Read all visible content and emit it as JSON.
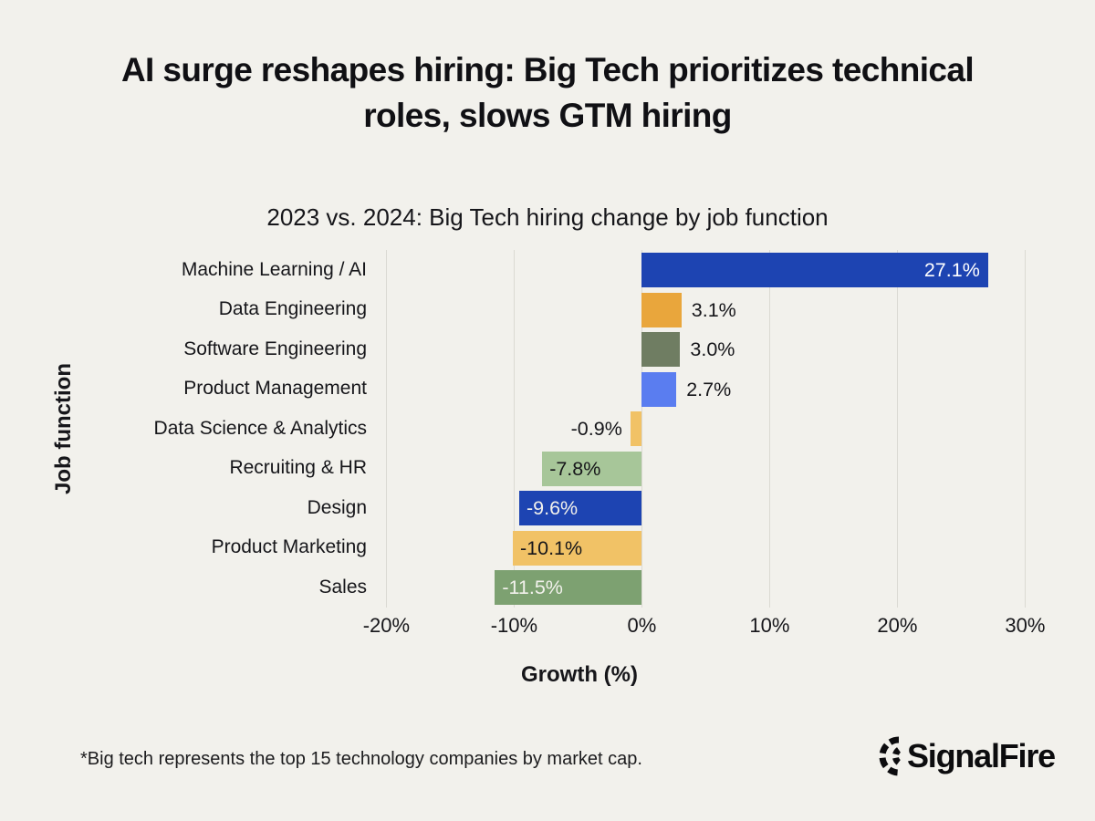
{
  "header": {
    "title": "AI surge reshapes hiring: Big Tech prioritizes technical roles, slows GTM hiring",
    "subtitle": "2023 vs. 2024: Big Tech hiring change by job function"
  },
  "chart_data": {
    "type": "bar",
    "orientation": "horizontal",
    "title": "2023 vs. 2024: Big Tech hiring change by job function",
    "xlabel": "Growth (%)",
    "ylabel": "Job function",
    "categories": [
      "Machine Learning / AI",
      "Data Engineering",
      "Software Engineering",
      "Product Management",
      "Data Science & Analytics",
      "Recruiting & HR",
      "Design",
      "Product Marketing",
      "Sales"
    ],
    "values": [
      27.1,
      3.1,
      3.0,
      2.7,
      -0.9,
      -7.8,
      -9.6,
      -10.1,
      -11.5
    ],
    "value_labels": [
      "27.1%",
      "3.1%",
      "3.0%",
      "2.7%",
      "-0.9%",
      "-7.8%",
      "-9.6%",
      "-10.1%",
      "-11.5%"
    ],
    "bar_colors": [
      "#1d44b2",
      "#e9a63c",
      "#6f7d62",
      "#5a7df0",
      "#f1c266",
      "#a7c699",
      "#1d44b2",
      "#f1c266",
      "#7da171"
    ],
    "label_inside": [
      true,
      false,
      false,
      false,
      false,
      true,
      true,
      true,
      true
    ],
    "label_colors": [
      "#ffffff",
      "#16161a",
      "#16161a",
      "#16161a",
      "#16161a",
      "#16161a",
      "#f2f1ec",
      "#16161a",
      "#f2f1ec"
    ],
    "x_tick_values": [
      -20,
      -10,
      0,
      10,
      20,
      30
    ],
    "x_tick_labels": [
      "-20%",
      "-10%",
      "0%",
      "10%",
      "20%",
      "30%"
    ],
    "axis_range": [
      -21.1,
      33.9
    ],
    "grid": true,
    "legend": false,
    "background": "#f2f1ec"
  },
  "footnote": {
    "text": "*Big tech represents the top 15 technology companies by market cap."
  },
  "logo": {
    "text": "SignalFire"
  }
}
